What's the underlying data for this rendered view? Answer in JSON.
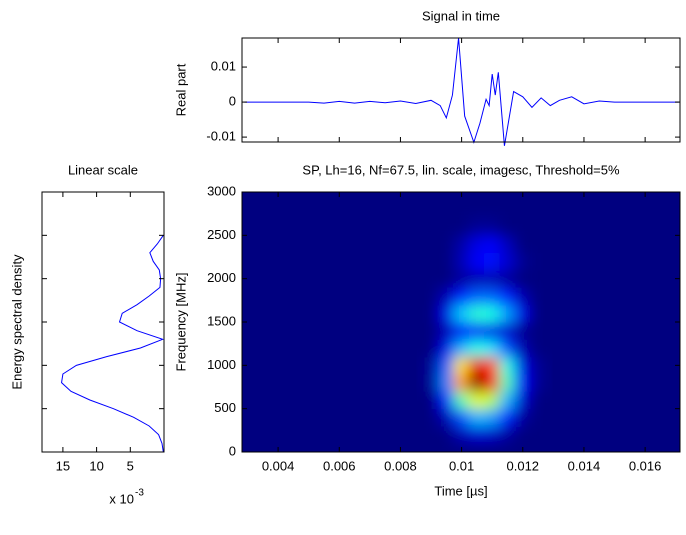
{
  "chart_data": [
    {
      "type": "line",
      "title": "Signal in time",
      "ylabel": "Real part",
      "color": "#0000ff",
      "x": [
        0.0029,
        0.005,
        0.0055,
        0.006,
        0.0065,
        0.007,
        0.0075,
        0.008,
        0.0085,
        0.009,
        0.0093,
        0.0095,
        0.0097,
        0.0099,
        0.0101,
        0.0104,
        0.0106,
        0.0108,
        0.0109,
        0.011,
        0.0111,
        0.0112,
        0.0114,
        0.0117,
        0.012,
        0.0123,
        0.0126,
        0.0129,
        0.0132,
        0.0136,
        0.014,
        0.0145,
        0.015,
        0.0171
      ],
      "values": [
        0,
        0,
        -0.0003,
        0.0002,
        -0.0003,
        0.0002,
        -0.0002,
        0.0003,
        -0.0004,
        0.0005,
        -0.001,
        -0.0045,
        0.002,
        0.0183,
        -0.004,
        -0.0115,
        -0.006,
        0.0008,
        -0.001,
        0.008,
        0.002,
        0.0085,
        -0.0125,
        0.003,
        0.0015,
        -0.0015,
        0.0012,
        -0.001,
        0.0005,
        0.0015,
        -0.0005,
        0.0003,
        0,
        0
      ],
      "xlim": [
        0.00282,
        0.01714
      ],
      "ylim": [
        -0.0114,
        0.0183
      ],
      "xticks": [
        0.004,
        0.006,
        0.008,
        0.01,
        0.012,
        0.014,
        0.016
      ],
      "xtick_labels": false,
      "yticks": [
        -0.01,
        0,
        0.01
      ]
    },
    {
      "type": "line",
      "orientation": "horizontal",
      "title": "Linear scale",
      "ylabel": "Energy spectral density",
      "color": "#0000ff",
      "xlabel": "x 10",
      "xlabel_exponent": "-3",
      "y": [
        0,
        100,
        200,
        300,
        400,
        500,
        600,
        700,
        800,
        900,
        1000,
        1100,
        1200,
        1300,
        1400,
        1500,
        1600,
        1700,
        1800,
        1900,
        2000,
        2100,
        2200,
        2300,
        2400,
        2500
      ],
      "values": [
        0.1,
        0.3,
        0.8,
        2.2,
        4.5,
        7.5,
        11,
        13.8,
        15.2,
        15,
        13,
        8.5,
        3.5,
        0.2,
        4,
        6.6,
        6.2,
        4,
        2.2,
        0.6,
        0.5,
        0.7,
        1.6,
        2.1,
        1,
        0.1
      ],
      "xlim": [
        18.1,
        0
      ],
      "ylim": [
        0,
        3000
      ],
      "xticks": [
        15,
        10,
        5
      ],
      "yticks": [
        500,
        1000,
        1500,
        2000,
        2500
      ],
      "ytick_labels": false
    },
    {
      "type": "heatmap",
      "title": "SP, Lh=16, Nf=67.5, lin. scale, imagesc, Threshold=5%",
      "xlabel": "Time [µs]",
      "ylabel": "Frequency [MHz]",
      "colormap": "jet",
      "x": [
        0.009,
        0.0095,
        0.01,
        0.0105,
        0.011,
        0.0115,
        0.012,
        0.0125
      ],
      "y": [
        200,
        400,
        600,
        800,
        1000,
        1200,
        1400,
        1600,
        1800,
        2000,
        2200,
        2400,
        2600
      ],
      "z": [
        [
          0,
          0,
          0.05,
          0.08,
          0.07,
          0.03,
          0,
          0
        ],
        [
          0,
          0.05,
          0.2,
          0.3,
          0.28,
          0.15,
          0.03,
          0
        ],
        [
          0,
          0.15,
          0.45,
          0.6,
          0.55,
          0.3,
          0.08,
          0
        ],
        [
          0.02,
          0.25,
          0.72,
          1,
          0.88,
          0.45,
          0.12,
          0.02
        ],
        [
          0.02,
          0.22,
          0.65,
          0.9,
          0.8,
          0.4,
          0.1,
          0.02
        ],
        [
          0,
          0.1,
          0.3,
          0.4,
          0.35,
          0.2,
          0.05,
          0
        ],
        [
          0,
          0.05,
          0.12,
          0.12,
          0.1,
          0.08,
          0.02,
          0
        ],
        [
          0,
          0.1,
          0.32,
          0.42,
          0.4,
          0.28,
          0.1,
          0
        ],
        [
          0,
          0.05,
          0.15,
          0.22,
          0.22,
          0.15,
          0.05,
          0
        ],
        [
          0,
          0,
          0.03,
          0.05,
          0.05,
          0.03,
          0,
          0
        ],
        [
          0,
          0,
          0.05,
          0.12,
          0.14,
          0.08,
          0.02,
          0
        ],
        [
          0,
          0,
          0.04,
          0.1,
          0.12,
          0.06,
          0,
          0
        ],
        [
          0,
          0,
          0,
          0.02,
          0.02,
          0,
          0,
          0
        ]
      ],
      "zlim": [
        0,
        1
      ],
      "xlim": [
        0.00282,
        0.01714
      ],
      "ylim": [
        0,
        3000
      ],
      "xticks": [
        0.004,
        0.006,
        0.008,
        0.01,
        0.012,
        0.014,
        0.016
      ],
      "yticks": [
        0,
        500,
        1000,
        1500,
        2000,
        2500,
        3000
      ]
    }
  ]
}
